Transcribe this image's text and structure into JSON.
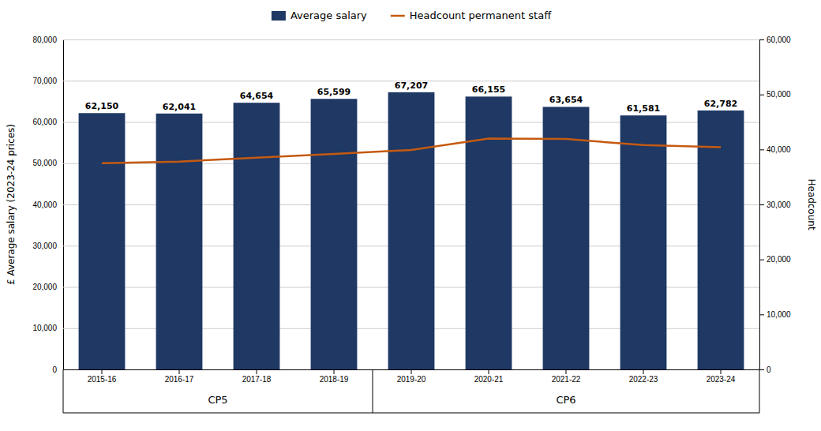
{
  "chart_data": {
    "type": "bar",
    "categories": [
      "2015-16",
      "2016-17",
      "2017-18",
      "2018-19",
      "2019-20",
      "2020-21",
      "2021-22",
      "2022-23",
      "2023-24"
    ],
    "series": [
      {
        "name": "Average salary",
        "type": "bar",
        "color": "#1F3864",
        "values": [
          62150,
          62041,
          64654,
          65599,
          67207,
          66155,
          63654,
          61581,
          62782
        ],
        "value_labels": [
          "62,150",
          "62,041",
          "64,654",
          "65,599",
          "67,207",
          "66,155",
          "63,654",
          "61,581",
          "62,782"
        ],
        "data_labels": true
      },
      {
        "name": "Headcount permanent staff",
        "type": "line",
        "color": "#C55A11",
        "axis": "y2",
        "values": [
          37500,
          37800,
          38500,
          39200,
          39900,
          42000,
          41900,
          40790,
          40402
        ]
      }
    ],
    "ylabel": "£ Average salary (2023-24 prices)",
    "y2label": "Headcount",
    "ylim": [
      0,
      80000
    ],
    "yticks": [
      0,
      {
        "value": 10000,
        "label": "10,000"
      },
      {
        "value": 20000,
        "label": "20,000"
      },
      {
        "value": 30000,
        "label": "30,000"
      },
      {
        "value": 40000,
        "label": "40,000"
      },
      {
        "value": 50000,
        "label": "50,000"
      },
      {
        "value": 60000,
        "label": "60,000"
      },
      {
        "value": 70000,
        "label": "70,000"
      },
      {
        "value": 80000,
        "label": "80,000"
      }
    ],
    "y2lim": [
      0,
      60000
    ],
    "y2ticks": [
      0,
      {
        "value": 10000,
        "label": "10,000"
      },
      {
        "value": 20000,
        "label": "20,000"
      },
      {
        "value": 30000,
        "label": "30,000"
      },
      {
        "value": 40000,
        "label": "40,000"
      },
      {
        "value": 50000,
        "label": "50,000"
      },
      {
        "value": 60000,
        "label": "60,000"
      }
    ],
    "grid": true,
    "legend": "top",
    "groups": [
      {
        "label": "CP5",
        "categories": [
          "2015-16",
          "2016-17",
          "2017-18",
          "2018-19"
        ]
      },
      {
        "label": "CP6",
        "categories": [
          "2019-20",
          "2020-21",
          "2021-22",
          "2022-23",
          "2023-24"
        ]
      }
    ]
  }
}
